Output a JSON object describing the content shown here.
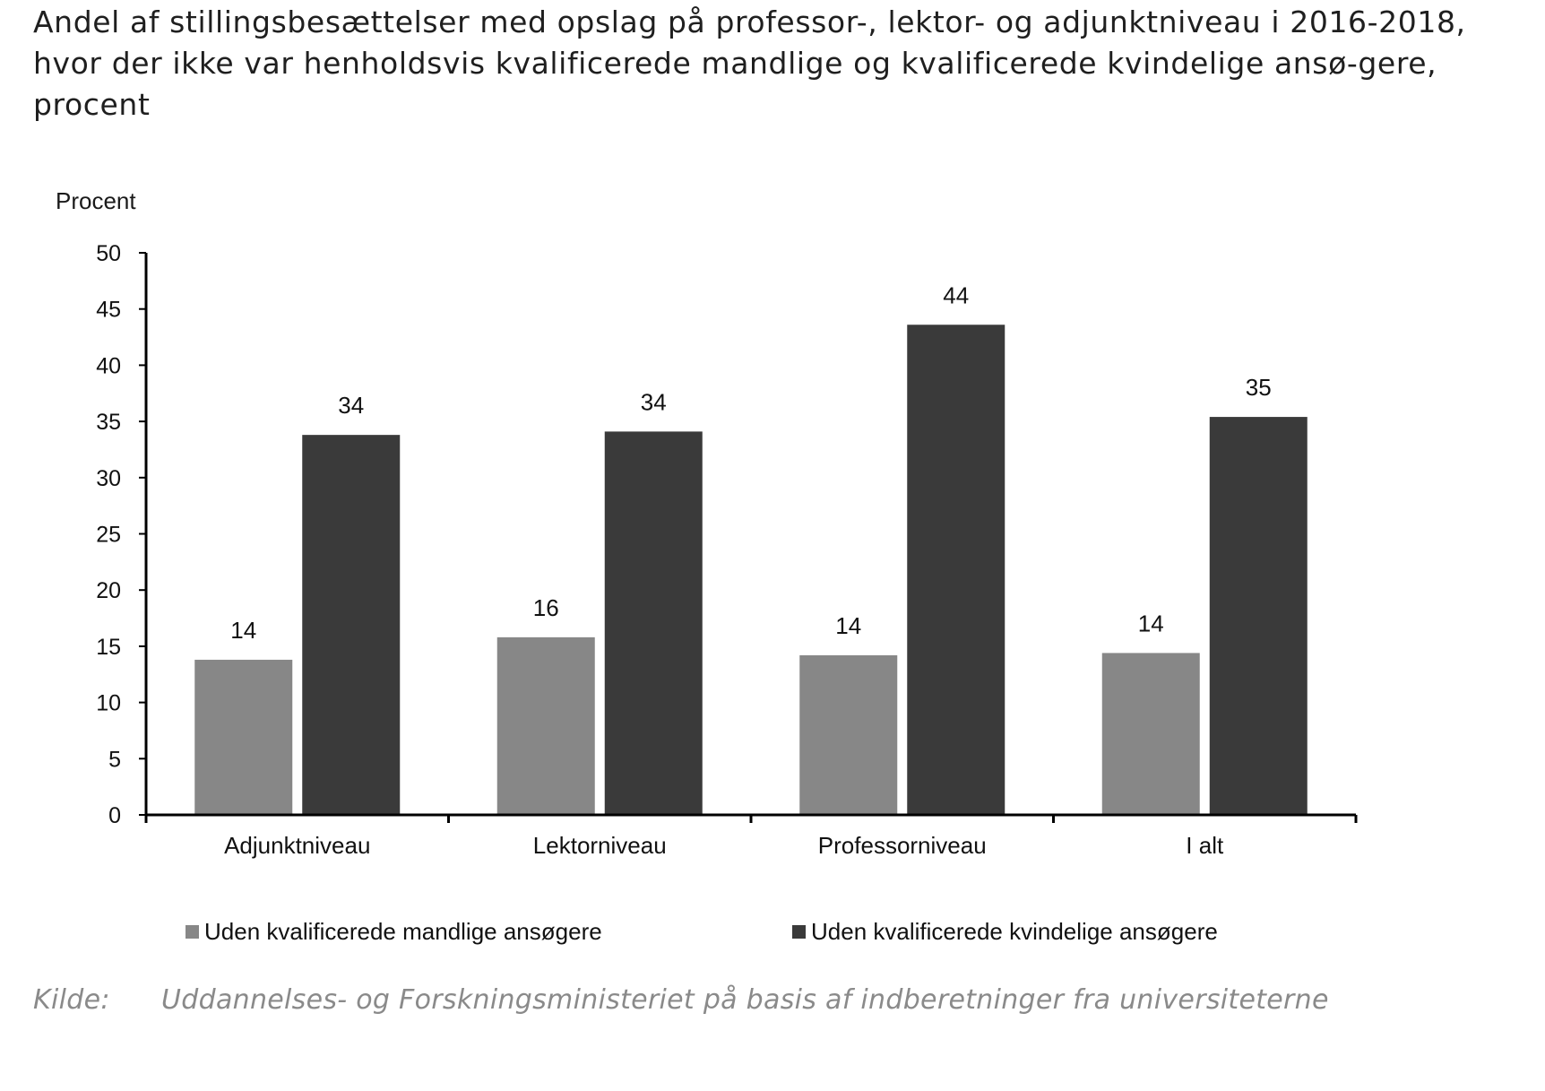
{
  "title": "Andel af stillingsbesættelser med opslag på professor-, lektor- og adjunktniveau i 2016-2018, hvor der ikke var henholdsvis kvalificerede mandlige og kvalificerede kvindelige ansø-gere, procent",
  "source": {
    "label": "Kilde:",
    "text": "Uddannelses- og Forskningsministeriet på basis af indberetninger fra universiteterne"
  },
  "chart_data": {
    "type": "bar",
    "ylabel": "Procent",
    "xlabel": "",
    "ylim": [
      0,
      50
    ],
    "yticks": [
      0,
      5,
      10,
      15,
      20,
      25,
      30,
      35,
      40,
      45,
      50
    ],
    "categories": [
      "Adjunktniveau",
      "Lektorniveau",
      "Professorniveau",
      "I alt"
    ],
    "series": [
      {
        "name": "Uden kvalificerede mandlige ansøgere",
        "color": "#878787",
        "values": [
          13.8,
          15.8,
          14.2,
          14.4
        ],
        "labels": [
          "14",
          "16",
          "14",
          "14"
        ]
      },
      {
        "name": "Uden kvalificerede kvindelige ansøgere",
        "color": "#3a3a3a",
        "values": [
          33.8,
          34.1,
          43.6,
          35.4
        ],
        "labels": [
          "34",
          "34",
          "44",
          "35"
        ]
      }
    ],
    "legend_position": "bottom",
    "grid": false
  }
}
